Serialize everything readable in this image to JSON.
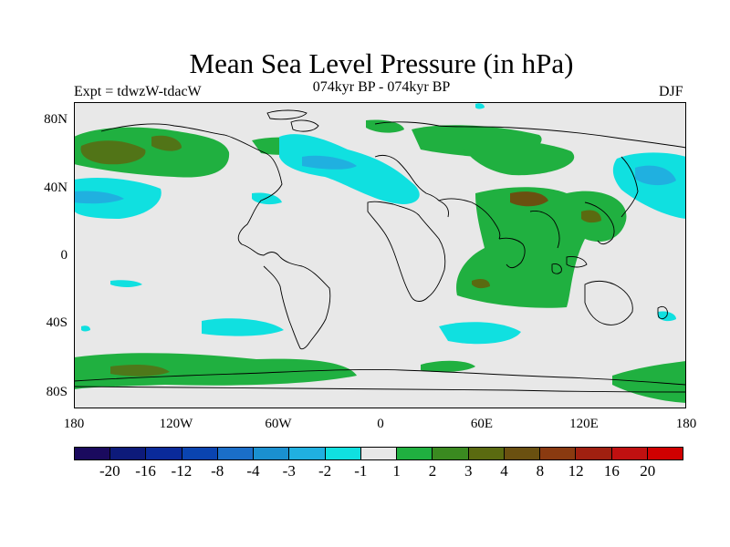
{
  "title": "Mean Sea Level Pressure (in hPa)",
  "subtitle_left": "Expt = tdwzW-tdacW",
  "subtitle_center": "074kyr BP - 074kyr BP",
  "subtitle_right": "DJF",
  "lat_labels": [
    "80N",
    "40N",
    "0",
    "40S",
    "80S"
  ],
  "lon_labels": [
    "180",
    "120W",
    "60W",
    "0",
    "60E",
    "120E",
    "180"
  ],
  "colorbar": {
    "colors": [
      "#1a0a5e",
      "#0d1a7a",
      "#0a2a9a",
      "#0a44b0",
      "#1a6ec8",
      "#1a90d0",
      "#20b0e0",
      "#10e0e0",
      "#e8e8e8",
      "#20b040",
      "#3a8a20",
      "#5a6a10",
      "#6a5010",
      "#8a3a10",
      "#a02010",
      "#c01010",
      "#d00000"
    ],
    "labels": [
      "-20",
      "-16",
      "-12",
      "-8",
      "-4",
      "-3",
      "-2",
      "-1",
      "1",
      "2",
      "3",
      "4",
      "8",
      "12",
      "16",
      "20"
    ]
  },
  "colors": {
    "background": "#e8e8e8",
    "neg1": "#10e0e0",
    "neg2": "#20b0e0",
    "pos1": "#20b040",
    "pos3": "#5a6a10",
    "pos4": "#6a5010"
  }
}
